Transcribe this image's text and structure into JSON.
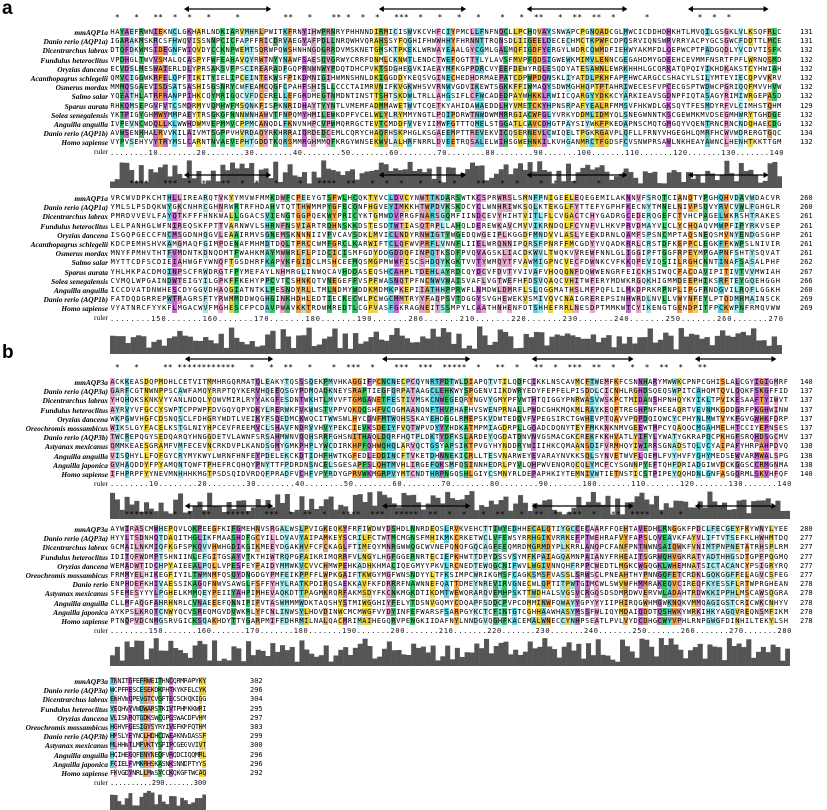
{
  "panels": [
    {
      "letter": "a",
      "blocks": [
        {
          "names": [
            "mmAQP1a",
            "Danio rerio (AQP1a)",
            "Dicentrarchus labrax",
            "Fundulus heteroclitus",
            "Oryzias dancena",
            "Acanthopagrus schlegelii",
            "Osmerus mordax",
            "Salmo salar",
            "Sparus aurata",
            "Solea senegalensis",
            "Anguilla anguilla",
            "Danio rerio (AQP1b)",
            "Homo sapiense"
          ],
          "ends": [
            "131",
            "131",
            "132",
            "132",
            "132",
            "132",
            "132",
            "132",
            "129",
            "132",
            "132",
            "134",
            "132"
          ],
          "ruler": "........10........20........30........40........50........60........70........80........90.......100.......110.......120.......130.......140",
          "stars": " *   *   **  *  *   *     *         **   *    ** *  *  *   ***  *   *   *   *    *   *  **   *  **  **  *      *          *  *  *"
        },
        {
          "names": [
            "mmAQP1a",
            "Danio rerio (AQP1a)",
            "Dicentrarchus labrax",
            "Fundulus heteroclitus",
            "Oryzias dancena",
            "Acanthopagrus schlegelii",
            "Osmerus mordax",
            "Salmo salar",
            "Sparus aurata",
            "Solea senegalensis",
            "Anguilla anguilla",
            "Danio rerio (AQP1b)",
            "Homo sapiense"
          ],
          "ends": [
            "260",
            "260",
            "261",
            "261",
            "261",
            "261",
            "261",
            "262",
            "267",
            "266",
            "260",
            "269",
            "269"
          ],
          "ruler": "........150.......160.......170.......180.......190.......200.......210.......220.......230.......240.......250.......260.......270",
          "stars": "    ****   ***  *  *   **  *  *   *    *   ****  **   *  *  *   *   *  *    **   *  *    *  *   *    *"
        }
      ]
    },
    {
      "letter": "b",
      "blocks": [
        {
          "names": [
            "mmAQP3a",
            "Danio rerio (AQP3a)",
            "Dicentrarchus labrax",
            "Fundulus heteroclitus",
            "Oryzias dancena",
            "Oreochromis mossambicus",
            "Danio rerio (AQP3b)",
            "Astyanax mexicanus",
            "Anguilla anguilla",
            "Anguilla japonica",
            "Homo sapiense"
          ],
          "ends": [
            "140",
            "137",
            "137",
            "137",
            "137",
            "137",
            "137",
            "138",
            "138",
            "138",
            "140"
          ],
          "ruler": "........10........20........30........40........50........60........70........80........90.......100.......110.......120.......130.......140",
          "stars": " *   *     ** ************   *   *  **   *    *  ***  *    ***  ***  *****  *   **  *   **  *  ***  **  *   *  *  **  *   **"
        },
        {
          "names": [
            "mmAQP3a",
            "Danio rerio (AQP3a)",
            "Dicentrarchus labrax",
            "Fundulus heteroclitus",
            "Oryzias dancena",
            "Oreochromis mossambicus",
            "Danio rerio",
            "Astyanax mexicanus",
            "Anguilla anguilla",
            "Anguilla japonica",
            "Homo sapiense"
          ],
          "ends": [
            "280",
            "277",
            "277",
            "277",
            "277",
            "277",
            "278",
            "278",
            "278",
            "278",
            "278"
          ],
          "ruler": "........150.......160.......170.......180.......190.......200.......210.......220.......230.......240.......250.......260.......270.......280",
          "stars": "   ******    *  *  **   *****   ***  *  **  *   ****  ***  *****  **  *  *   *  **   *  **  *  ***  *   **  ****  *   *"
        },
        {
          "names": [
            "mmAQP3a",
            "Danio rerio (AQP3a)",
            "Dicentrarchus labrax",
            "Fundulus heteroclitus",
            "Oryzias dancena",
            "Oreochromis mossambicus",
            "Danio rerio (AQP3b)",
            "Astyanax mexicanus",
            "Anguilla anguilla",
            "Anguilla japonica",
            "Homo sapiense"
          ],
          "ends": [
            "302",
            "296",
            "304",
            "295",
            "297",
            "303",
            "299",
            "300",
            "296",
            "296",
            "292"
          ],
          "ruler": "..........290.......300",
          "stars": ""
        }
      ]
    }
  ],
  "ruler_label": "ruler"
}
